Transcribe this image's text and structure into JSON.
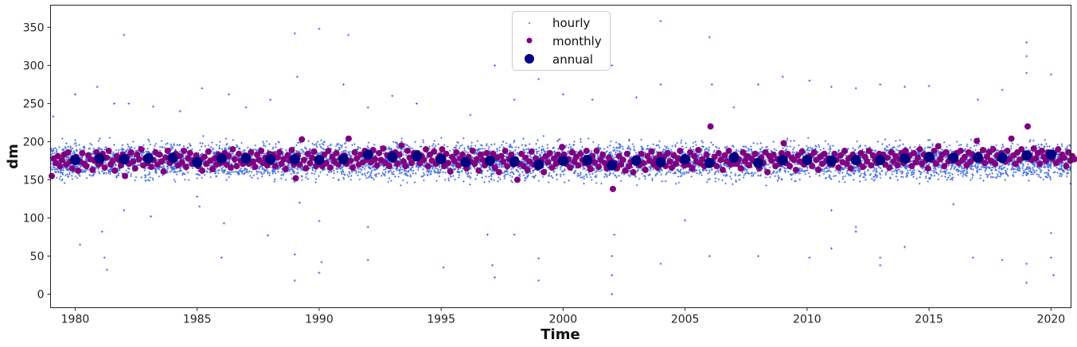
{
  "chart_data": {
    "type": "scatter",
    "title": "",
    "xlabel": "Time",
    "ylabel": "dm",
    "xlim": [
      1978.99,
      2020.82
    ],
    "ylim": [
      -17.7,
      379
    ],
    "xticks": [
      1980,
      1985,
      1990,
      1995,
      2000,
      2005,
      2010,
      2015,
      2020
    ],
    "yticks": [
      0,
      50,
      100,
      150,
      200,
      250,
      300,
      350
    ],
    "grid": false,
    "legend": {
      "placement": "upper-center",
      "entries": [
        "hourly",
        "monthly",
        "annual"
      ]
    },
    "colors": {
      "hourly": "#4169e1",
      "monthly": "#800080",
      "annual": "#000080"
    },
    "series": [
      {
        "name": "hourly",
        "typical_range": [
          145,
          210
        ],
        "outliers": [
          [
            1979.1,
            233
          ],
          [
            1980.0,
            262
          ],
          [
            1980.2,
            65
          ],
          [
            1980.9,
            272
          ],
          [
            1981.1,
            82
          ],
          [
            1981.2,
            48
          ],
          [
            1981.3,
            32
          ],
          [
            1981.6,
            250
          ],
          [
            1982.0,
            340
          ],
          [
            1982.0,
            110
          ],
          [
            1982.2,
            250
          ],
          [
            1983.1,
            102
          ],
          [
            1983.2,
            246
          ],
          [
            1984.3,
            240
          ],
          [
            1985.0,
            128
          ],
          [
            1985.1,
            115
          ],
          [
            1985.2,
            270
          ],
          [
            1986.0,
            48
          ],
          [
            1986.1,
            93
          ],
          [
            1986.3,
            262
          ],
          [
            1987.0,
            245
          ],
          [
            1987.9,
            77
          ],
          [
            1988.0,
            255
          ],
          [
            1989.0,
            342
          ],
          [
            1989.0,
            52
          ],
          [
            1989.0,
            18
          ],
          [
            1989.1,
            285
          ],
          [
            1989.2,
            120
          ],
          [
            1990.0,
            348
          ],
          [
            1990.0,
            28
          ],
          [
            1990.1,
            42
          ],
          [
            1990.0,
            96
          ],
          [
            1991.0,
            275
          ],
          [
            1991.2,
            340
          ],
          [
            1992.0,
            245
          ],
          [
            1992.0,
            88
          ],
          [
            1992.0,
            45
          ],
          [
            1993.0,
            260
          ],
          [
            1994.0,
            250
          ],
          [
            1995.1,
            35
          ],
          [
            1996.2,
            235
          ],
          [
            1996.9,
            78
          ],
          [
            1997.2,
            300
          ],
          [
            1997.2,
            22
          ],
          [
            1997.1,
            38
          ],
          [
            1998.0,
            255
          ],
          [
            1998.0,
            78
          ],
          [
            1999.0,
            282
          ],
          [
            1999.0,
            47
          ],
          [
            1999.0,
            18
          ],
          [
            2000.0,
            262
          ],
          [
            2001.2,
            255
          ],
          [
            2002.0,
            300
          ],
          [
            2002.0,
            50
          ],
          [
            2002.0,
            25
          ],
          [
            2002.0,
            0
          ],
          [
            2002.1,
            78
          ],
          [
            2003.0,
            258
          ],
          [
            2004.0,
            358
          ],
          [
            2004.0,
            275
          ],
          [
            2004.0,
            40
          ],
          [
            2005.0,
            97
          ],
          [
            2006.0,
            337
          ],
          [
            2006.1,
            275
          ],
          [
            2006.0,
            50
          ],
          [
            2007.0,
            245
          ],
          [
            2008.0,
            275
          ],
          [
            2008.0,
            50
          ],
          [
            2009.0,
            285
          ],
          [
            2010.1,
            280
          ],
          [
            2010.1,
            48
          ],
          [
            2011.0,
            272
          ],
          [
            2011.0,
            110
          ],
          [
            2011.0,
            60
          ],
          [
            2012.0,
            270
          ],
          [
            2012.0,
            88
          ],
          [
            2012.0,
            82
          ],
          [
            2013.0,
            275
          ],
          [
            2013.0,
            48
          ],
          [
            2013.0,
            38
          ],
          [
            2014.0,
            272
          ],
          [
            2014.0,
            62
          ],
          [
            2015.0,
            273
          ],
          [
            2016.0,
            118
          ],
          [
            2016.8,
            48
          ],
          [
            2017.0,
            255
          ],
          [
            2018.0,
            268
          ],
          [
            2018.0,
            45
          ],
          [
            2019.0,
            330
          ],
          [
            2019.0,
            312
          ],
          [
            2019.0,
            290
          ],
          [
            2019.0,
            40
          ],
          [
            2019.0,
            15
          ],
          [
            2020.0,
            288
          ],
          [
            2020.0,
            80
          ],
          [
            2020.0,
            48
          ],
          [
            2020.1,
            25
          ],
          [
            2020.8,
            145
          ]
        ]
      },
      {
        "name": "monthly",
        "start_year": 1979,
        "values": [
          [
            155,
            178,
            172,
            181,
            168,
            176,
            183,
            170,
            186,
            174,
            165,
            179
          ],
          [
            180,
            162,
            174,
            185,
            171,
            168,
            182,
            177,
            163,
            175,
            186,
            170
          ],
          [
            172,
            184,
            166,
            179,
            188,
            170,
            175,
            162,
            181,
            176,
            169,
            183
          ],
          [
            155,
            180,
            171,
            186,
            174,
            165,
            183,
            177,
            190,
            169,
            178,
            172
          ],
          [
            181,
            167,
            176,
            186,
            170,
            183,
            174,
            161,
            179,
            188,
            172,
            176
          ],
          [
            176,
            184,
            169,
            181,
            173,
            188,
            167,
            178,
            185,
            171,
            176,
            182
          ],
          [
            168,
            176,
            162,
            180,
            171,
            187,
            175,
            164,
            178,
            170,
            183,
            172
          ],
          [
            173,
            185,
            170,
            181,
            166,
            190,
            177,
            168,
            184,
            175,
            171,
            182
          ],
          [
            180,
            171,
            186,
            174,
            167,
            183,
            176,
            188,
            172,
            179,
            169,
            184
          ],
          [
            173,
            183,
            168,
            179,
            186,
            171,
            177,
            164,
            182,
            175,
            189,
            170
          ],
          [
            152,
            182,
            170,
            203,
            176,
            165,
            184,
            172,
            179,
            187,
            168,
            175
          ],
          [
            176,
            168,
            183,
            172,
            188,
            166,
            180,
            174,
            185,
            170,
            178,
            181
          ],
          [
            182,
            171,
            204,
            175,
            166,
            186,
            178,
            170,
            183,
            173,
            188,
            176
          ],
          [
            180,
            173,
            189,
            177,
            169,
            185,
            176,
            191,
            172,
            182,
            168,
            184
          ],
          [
            176,
            186,
            171,
            183,
            195,
            174,
            168,
            188,
            179,
            172,
            185,
            178
          ],
          [
            185,
            172,
            181,
            176,
            190,
            168,
            183,
            175,
            187,
            171,
            178,
            182
          ],
          [
            190,
            168,
            184,
            172,
            161,
            180,
            175,
            186,
            169,
            178,
            183,
            171
          ],
          [
            165,
            180,
            174,
            188,
            171,
            177,
            162,
            183,
            176,
            169,
            185,
            173
          ],
          [
            172,
            184,
            166,
            179,
            160,
            181,
            174,
            188,
            168,
            177,
            183,
            170
          ],
          [
            176,
            150,
            171,
            184,
            168,
            179,
            163,
            174,
            187,
            170,
            178,
            166
          ],
          [
            169,
            176,
            160,
            181,
            173,
            185,
            166,
            178,
            171,
            183,
            175,
            193
          ],
          [
            183,
            171,
            177,
            166,
            186,
            174,
            180,
            169,
            184,
            176,
            172,
            188
          ],
          [
            170,
            164,
            181,
            173,
            188,
            167,
            176,
            183,
            172,
            165,
            179,
            175
          ],
          [
            138,
            172,
            165,
            181,
            170,
            176,
            162,
            184,
            168,
            174,
            160,
            178
          ],
          [
            178,
            169,
            184,
            172,
            163,
            181,
            175,
            187,
            170,
            177,
            166,
            183
          ],
          [
            172,
            180,
            168,
            185,
            174,
            166,
            182,
            171,
            178,
            188,
            175,
            169
          ],
          [
            178,
            170,
            186,
            165,
            181,
            174,
            189,
            172,
            177,
            168,
            183,
            175
          ],
          [
            220,
            172,
            180,
            168,
            185,
            176,
            163,
            182,
            174,
            188,
            170,
            178
          ],
          [
            183,
            171,
            177,
            165,
            186,
            174,
            181,
            169,
            178,
            175,
            184,
            172
          ],
          [
            165,
            179,
            172,
            186,
            160,
            181,
            175,
            183,
            168,
            177,
            171,
            185
          ],
          [
            198,
            172,
            184,
            168,
            179,
            176,
            163,
            182,
            174,
            187,
            170,
            178
          ],
          [
            174,
            181,
            168,
            186,
            176,
            163,
            180,
            171,
            184,
            175,
            178,
            170
          ],
          [
            170,
            184,
            176,
            166,
            182,
            173,
            188,
            171,
            178,
            165,
            183,
            175
          ],
          [
            178,
            171,
            185,
            167,
            180,
            174,
            188,
            169,
            182,
            176,
            172,
            184
          ],
          [
            176,
            183,
            170,
            179,
            166,
            186,
            174,
            181,
            169,
            177,
            185,
            172
          ],
          [
            188,
            176,
            182,
            168,
            185,
            173,
            179,
            190,
            171,
            183,
            176,
            165
          ],
          [
            182,
            176,
            188,
            171,
            194,
            177,
            183,
            168,
            186,
            174,
            180,
            175
          ],
          [
            177,
            185,
            172,
            188,
            176,
            180,
            169,
            186,
            174,
            183,
            178,
            201
          ],
          [
            183,
            176,
            189,
            172,
            180,
            186,
            175,
            190,
            171,
            182,
            178,
            185
          ],
          [
            180,
            174,
            188,
            177,
            204,
            182,
            171,
            186,
            176,
            190,
            179,
            184
          ],
          [
            220,
            182,
            176,
            191,
            178,
            185,
            171,
            188,
            180,
            175,
            186,
            182
          ],
          [
            178,
            185,
            172,
            190,
            176,
            183,
            179,
            168,
            186,
            175,
            181,
            177
          ]
        ]
      },
      {
        "name": "annual",
        "x": [
          1980,
          1981,
          1982,
          1983,
          1984,
          1985,
          1986,
          1987,
          1988,
          1989,
          1990,
          1991,
          1992,
          1993,
          1994,
          1995,
          1996,
          1997,
          1998,
          1999,
          2000,
          2001,
          2002,
          2003,
          2004,
          2005,
          2006,
          2007,
          2008,
          2009,
          2010,
          2011,
          2012,
          2013,
          2014,
          2015,
          2016,
          2017,
          2018,
          2019,
          2020
        ],
        "values": [
          176,
          178,
          177,
          178,
          179,
          173,
          178,
          178,
          177,
          177,
          176,
          177,
          183,
          180,
          181,
          177,
          173,
          175,
          174,
          170,
          175,
          176,
          169,
          175,
          173,
          177,
          172,
          179,
          172,
          176,
          176,
          175,
          176,
          176,
          178,
          180,
          179,
          179,
          179,
          182,
          183
        ]
      }
    ]
  }
}
